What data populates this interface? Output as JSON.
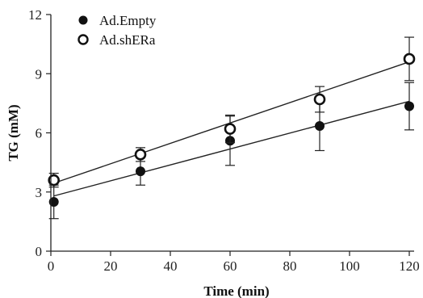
{
  "chart_data": {
    "type": "line",
    "xlabel": "Time (min)",
    "ylabel": "TG (mM)",
    "xlim": [
      0,
      120
    ],
    "ylim": [
      0,
      12
    ],
    "xticks": [
      0,
      20,
      40,
      60,
      80,
      100,
      120
    ],
    "yticks": [
      0,
      3,
      6,
      9,
      12
    ],
    "legend_position": "top-left",
    "grid": false,
    "series": [
      {
        "name": "Ad.Empty",
        "marker": "filled-circle",
        "x": [
          1,
          30,
          60,
          90,
          120
        ],
        "y": [
          2.5,
          4.05,
          5.6,
          6.35,
          7.35
        ],
        "error": [
          0.85,
          0.7,
          1.25,
          1.25,
          1.2
        ],
        "fit_line": {
          "x": [
            1,
            120
          ],
          "y": [
            2.8,
            7.6
          ]
        }
      },
      {
        "name": "Ad.shERa",
        "marker": "open-circle",
        "x": [
          1,
          30,
          60,
          90,
          120
        ],
        "y": [
          3.6,
          4.9,
          6.2,
          7.7,
          9.75
        ],
        "error": [
          0.35,
          0.35,
          0.7,
          0.65,
          1.1
        ],
        "fit_line": {
          "x": [
            1,
            120
          ],
          "y": [
            3.45,
            9.6
          ]
        }
      }
    ]
  }
}
